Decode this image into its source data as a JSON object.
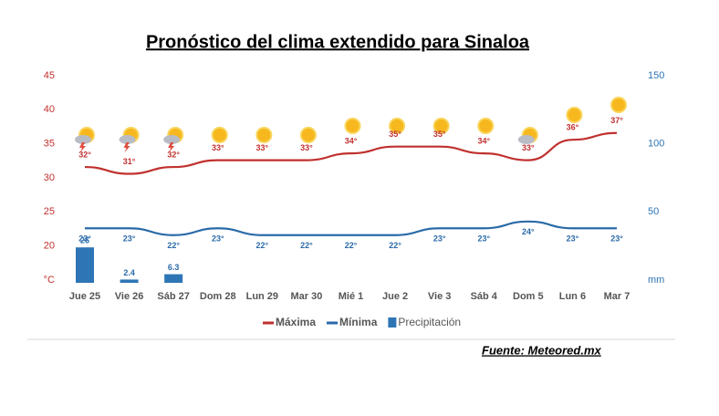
{
  "chart_data": {
    "type": "line",
    "title": "Pronóstico del clima extendido para Sinaloa",
    "source": "Fuente: Meteored.mx",
    "categories": [
      "Jue 25",
      "Vie 26",
      "Sáb 27",
      "Dom 28",
      "Lun 29",
      "Mar 30",
      "Mié 1",
      "Jue 2",
      "Vie 3",
      "Sáb 4",
      "Dom 5",
      "Lun 6",
      "Mar 7"
    ],
    "series": [
      {
        "name": "Máxima",
        "color": "#c0312f",
        "values": [
          32,
          31,
          32,
          33,
          33,
          33,
          34,
          35,
          35,
          34,
          33,
          36,
          37
        ],
        "value_labels": [
          "32°",
          "31°",
          "32°",
          "33°",
          "33°",
          "33°",
          "34°",
          "35°",
          "35°",
          "34°",
          "33°",
          "36°",
          "37°"
        ]
      },
      {
        "name": "Mínima",
        "color": "#2a6aa8",
        "values": [
          23,
          23,
          22,
          23,
          22,
          22,
          22,
          22,
          23,
          23,
          24,
          23,
          23
        ],
        "value_labels": [
          "23°",
          "23°",
          "22°",
          "23°",
          "22°",
          "22°",
          "22°",
          "22°",
          "23°",
          "23°",
          "24°",
          "23°",
          "23°"
        ]
      },
      {
        "name": "Precipitación",
        "color": "#2e75b6",
        "type": "bar",
        "axis": "y2",
        "values": [
          26,
          2.4,
          6.3,
          null,
          null,
          null,
          null,
          null,
          null,
          null,
          null,
          null,
          null
        ]
      }
    ],
    "ylim": [
      15,
      45
    ],
    "yticks": [
      {
        "value": 15,
        "label": "°C"
      },
      20,
      25,
      30,
      35,
      40,
      45
    ],
    "y2lim": [
      0,
      150
    ],
    "y2ticks": [
      {
        "value": 0,
        "label": "mm"
      },
      50,
      100,
      150
    ],
    "grid": false
  }
}
